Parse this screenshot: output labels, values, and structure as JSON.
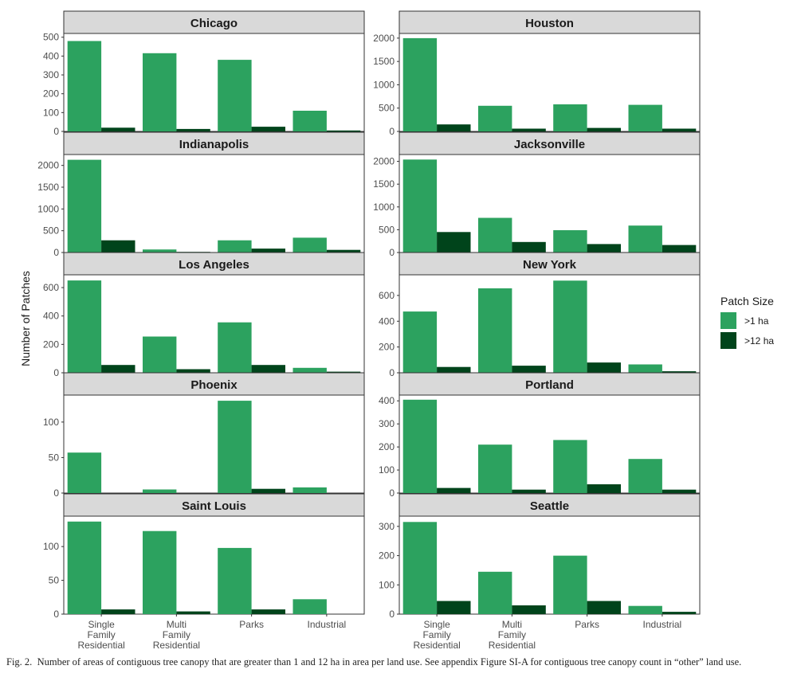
{
  "y_axis_label": "Number of Patches",
  "legend": {
    "title": "Patch Size",
    "items": [
      {
        "label": ">1 ha",
        "color": "#2ca25f"
      },
      {
        "label": ">12 ha",
        "color": "#00441b"
      }
    ]
  },
  "caption": {
    "label": "Fig. 2.",
    "text": "Number of areas of contiguous tree canopy that are greater than 1 and 12 ha in area per land use. See appendix Figure SI-A for contiguous tree canopy count in “other” land use."
  },
  "colors": {
    "strip": "#d9d9d9",
    "axis": "#333333",
    "tick_text": "#4d4d4d"
  },
  "chart_data": {
    "type": "bar",
    "categories": [
      "Single Family Residential",
      "Multi Family Residential",
      "Parks",
      "Industrial"
    ],
    "category_lines": [
      [
        "Single",
        "Family",
        "Residential"
      ],
      [
        "Multi",
        "Family",
        "Residential"
      ],
      [
        "Parks"
      ],
      [
        "Industrial"
      ]
    ],
    "series_names": [
      ">1 ha",
      ">12 ha"
    ],
    "panels": [
      {
        "city": "Chicago",
        "ticks": [
          0,
          100,
          200,
          300,
          400,
          500
        ],
        "ylim": [
          0,
          520
        ],
        "series": [
          {
            "name": ">1 ha",
            "values": [
              480,
              415,
              380,
              110
            ]
          },
          {
            "name": ">12 ha",
            "values": [
              20,
              13,
              25,
              5
            ]
          }
        ]
      },
      {
        "city": "Houston",
        "ticks": [
          0,
          500,
          1000,
          1500,
          2000
        ],
        "ylim": [
          0,
          2100
        ],
        "series": [
          {
            "name": ">1 ha",
            "values": [
              2000,
              550,
              580,
              570
            ]
          },
          {
            "name": ">12 ha",
            "values": [
              150,
              60,
              75,
              60
            ]
          }
        ]
      },
      {
        "city": "Indianapolis",
        "ticks": [
          0,
          500,
          1000,
          1500,
          2000
        ],
        "ylim": [
          0,
          2250
        ],
        "series": [
          {
            "name": ">1 ha",
            "values": [
              2130,
              70,
              280,
              340
            ]
          },
          {
            "name": ">12 ha",
            "values": [
              280,
              15,
              90,
              60
            ]
          }
        ]
      },
      {
        "city": "Jacksonville",
        "ticks": [
          0,
          500,
          1000,
          1500,
          2000
        ],
        "ylim": [
          0,
          2150
        ],
        "series": [
          {
            "name": ">1 ha",
            "values": [
              2040,
              760,
              490,
              590
            ]
          },
          {
            "name": ">12 ha",
            "values": [
              450,
              230,
              185,
              165
            ]
          }
        ]
      },
      {
        "city": "Los Angeles",
        "ticks": [
          0,
          200,
          400,
          600
        ],
        "ylim": [
          0,
          690
        ],
        "series": [
          {
            "name": ">1 ha",
            "values": [
              650,
              255,
              355,
              35
            ]
          },
          {
            "name": ">12 ha",
            "values": [
              55,
              25,
              55,
              8
            ]
          }
        ]
      },
      {
        "city": "New York",
        "ticks": [
          0,
          200,
          400,
          600
        ],
        "ylim": [
          0,
          760
        ],
        "series": [
          {
            "name": ">1 ha",
            "values": [
              475,
              655,
              715,
              65
            ]
          },
          {
            "name": ">12 ha",
            "values": [
              45,
              55,
              80,
              12
            ]
          }
        ]
      },
      {
        "city": "Phoenix",
        "ticks": [
          0,
          50,
          100
        ],
        "ylim": [
          0,
          138
        ],
        "series": [
          {
            "name": ">1 ha",
            "values": [
              57,
              5,
              130,
              8
            ]
          },
          {
            "name": ">12 ha",
            "values": [
              0,
              0,
              6,
              0
            ]
          }
        ]
      },
      {
        "city": "Portland",
        "ticks": [
          0,
          100,
          200,
          300,
          400
        ],
        "ylim": [
          0,
          425
        ],
        "series": [
          {
            "name": ">1 ha",
            "values": [
              405,
              210,
              230,
              148
            ]
          },
          {
            "name": ">12 ha",
            "values": [
              22,
              15,
              38,
              15
            ]
          }
        ]
      },
      {
        "city": "Saint Louis",
        "ticks": [
          0,
          50,
          100
        ],
        "ylim": [
          0,
          145
        ],
        "series": [
          {
            "name": ">1 ha",
            "values": [
              137,
              123,
              98,
              22
            ]
          },
          {
            "name": ">12 ha",
            "values": [
              7,
              4,
              7,
              0
            ]
          }
        ]
      },
      {
        "city": "Seattle",
        "ticks": [
          0,
          100,
          200,
          300
        ],
        "ylim": [
          0,
          335
        ],
        "series": [
          {
            "name": ">1 ha",
            "values": [
              315,
              145,
              200,
              28
            ]
          },
          {
            "name": ">12 ha",
            "values": [
              45,
              30,
              45,
              8
            ]
          }
        ]
      }
    ]
  }
}
